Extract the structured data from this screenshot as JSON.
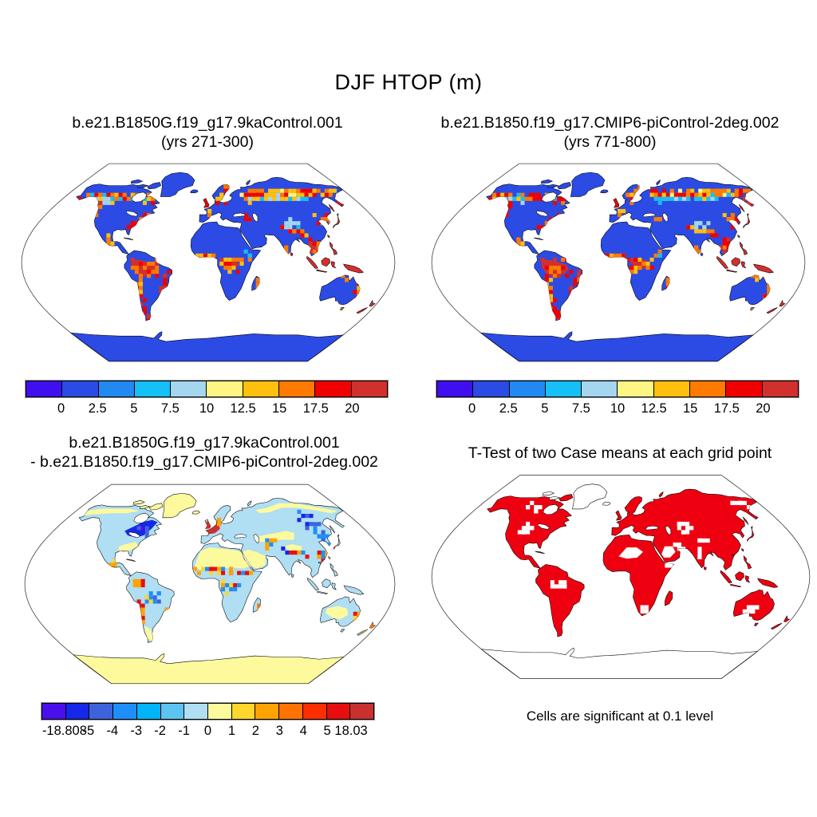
{
  "figure": {
    "title": "DJF HTOP (m)",
    "background": "#ffffff",
    "variable": "HTOP",
    "season": "DJF",
    "units": "m"
  },
  "panels": [
    {
      "id": "case1",
      "title_line1": "b.e21.B1850G.f19_g17.9kaControl.001",
      "title_line2": "(yrs 271-300)"
    },
    {
      "id": "case2",
      "title_line1": "b.e21.B1850.f19_g17.CMIP6-piControl-2deg.002",
      "title_line2": "(yrs 771-800)"
    },
    {
      "id": "diff",
      "title_line1": "b.e21.B1850G.f19_g17.9kaControl.001",
      "title_line2": "- b.e21.B1850.f19_g17.CMIP6-piControl-2deg.002"
    },
    {
      "id": "ttest",
      "title_line1": "T-Test of two Case means at each grid point",
      "caption": "Cells are significant at 0.1 level"
    }
  ],
  "colorbars": {
    "top": {
      "labels": [
        "0",
        "2.5",
        "5",
        "7.5",
        "10",
        "12.5",
        "15",
        "17.5",
        "20"
      ],
      "colors": [
        "#400fef",
        "#2b4be4",
        "#2289f2",
        "#15bff7",
        "#a5d6ef",
        "#fff583",
        "#ffc00d",
        "#ff7a00",
        "#f00000",
        "#d2302e"
      ]
    },
    "diff": {
      "labels": [
        "-18.808",
        "-5",
        "-4",
        "-3",
        "-2",
        "-1",
        "0",
        "1",
        "2",
        "3",
        "4",
        "5",
        "18.03"
      ],
      "colors": [
        "#4a10ec",
        "#1527e8",
        "#3d63dc",
        "#1e8ffa",
        "#00b4f7",
        "#5bc4f2",
        "#b0def2",
        "#fdfa9e",
        "#ffd62b",
        "#ffa300",
        "#ff7300",
        "#ff2e00",
        "#e60e0e",
        "#c93030"
      ]
    }
  },
  "chart_data": [
    {
      "type": "heatmap",
      "subtype": "global-filled-grid-map",
      "projection": "Robinson",
      "title": "b.e21.B1850G.f19_g17.9kaControl.001 (yrs 271-300)",
      "variable": "HTOP",
      "season": "DJF",
      "units": "m",
      "levels": [
        0,
        2.5,
        5,
        7.5,
        10,
        12.5,
        15,
        17.5,
        20
      ],
      "palette": [
        "#400fef",
        "#2b4be4",
        "#2289f2",
        "#15bff7",
        "#a5d6ef",
        "#fff583",
        "#ffc00d",
        "#ff7a00",
        "#f00000",
        "#d2302e"
      ],
      "legend_position": "below",
      "description": "Canopy-top height over land: low values (blue) over tundra, deserts, ice and grassland; high values (orange/red, >15-20 m) along the North American and Eurasian boreal forest belts, the Pacific Northwest, eastern USA, Amazon basin, Congo basin, Southeast Asia, Indonesia, New Guinea, Japan, eastern Australia and New Zealand; oceans blank"
    },
    {
      "type": "heatmap",
      "subtype": "global-filled-grid-map",
      "projection": "Robinson",
      "title": "b.e21.B1850.f19_g17.CMIP6-piControl-2deg.002 (yrs 771-800)",
      "variable": "HTOP",
      "season": "DJF",
      "units": "m",
      "levels": [
        0,
        2.5,
        5,
        7.5,
        10,
        12.5,
        15,
        17.5,
        20
      ],
      "palette": [
        "#400fef",
        "#2b4be4",
        "#2289f2",
        "#15bff7",
        "#a5d6ef",
        "#fff583",
        "#ffc00d",
        "#ff7a00",
        "#f00000",
        "#d2302e"
      ],
      "legend_position": "below",
      "description": "Nearly identical spatial pattern to case 1: blue low canopy over most land, red/orange boreal forest bands, Amazon and Congo maxima, dark red maritime continent"
    },
    {
      "type": "heatmap",
      "subtype": "global-difference-map",
      "projection": "Robinson",
      "title": "b.e21.B1850G.f19_g17.9kaControl.001 - b.e21.B1850.f19_g17.CMIP6-piControl-2deg.002",
      "variable": "HTOP",
      "season": "DJF",
      "units": "m",
      "levels": [
        -5,
        -4,
        -3,
        -2,
        -1,
        0,
        1,
        2,
        3,
        4,
        5
      ],
      "min": -18.808,
      "max": 18.03,
      "palette": [
        "#4a10ec",
        "#1527e8",
        "#3d63dc",
        "#1e8ffa",
        "#00b4f7",
        "#5bc4f2",
        "#b0def2",
        "#fdfa9e",
        "#ffd62b",
        "#ffa300",
        "#ff7300",
        "#ff2e00",
        "#e60e0e",
        "#c93030"
      ],
      "legend_position": "below",
      "description": "Difference map: mostly weak values (pale blue -1..0 and pale yellow 0..1); strong negative (dark blue/violet) blob over eastern Canada and the Great Lakes/Quebec; strong positive (dark red, up to 18.03) blob over the British Isles and western Europe; scattered mixed anomalies along the Sahel, Andes, Himalaya, East Asia and Madagascar"
    },
    {
      "type": "map",
      "subtype": "significance-mask",
      "projection": "Robinson",
      "title": "T-Test of two Case means at each grid point",
      "note": "Cells are significant at 0.1 level",
      "significant_color": "#ee0011",
      "description": "Red cells mark grid points where the two case means differ significantly at the 0.1 level: nearly all vegetated land is red; Greenland, Antarctica, the central Sahara, Arabia, central Australia and scattered interior cells are not significant (white)"
    }
  ]
}
